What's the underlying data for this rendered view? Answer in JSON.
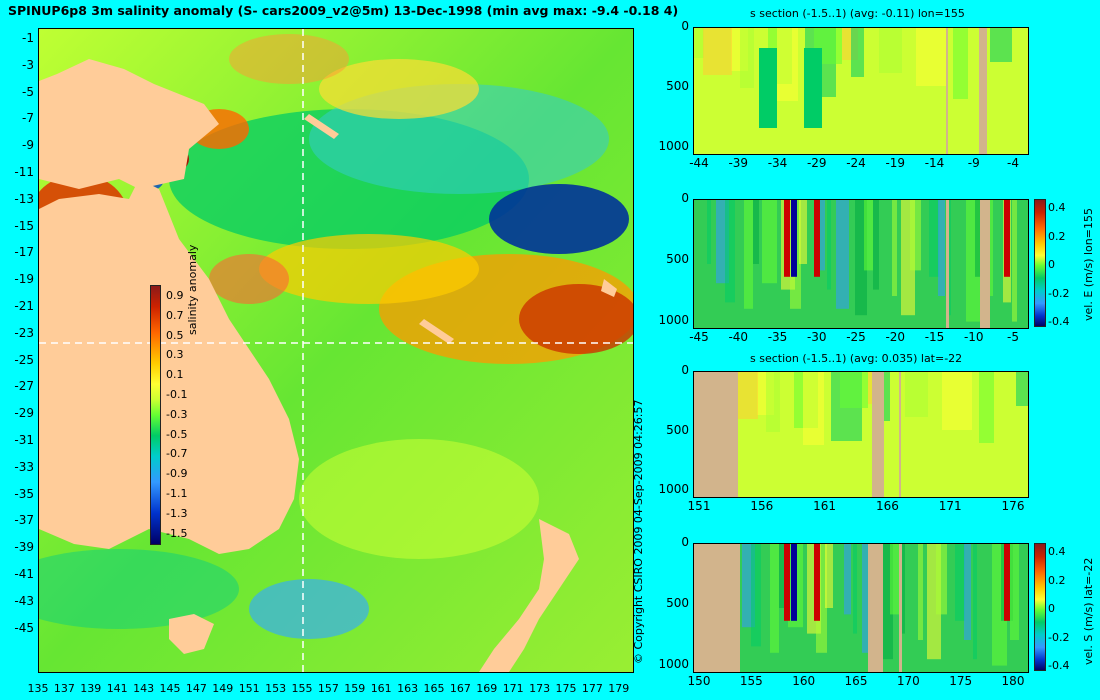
{
  "main_title": "SPINUP6p8 3m salinity anomaly (S- cars2009_v2@5m) 13-Dec-1998 (min avg max: -9.4 -0.18 4)",
  "map": {
    "y_labels": [
      "-1",
      "-3",
      "-5",
      "-7",
      "-9",
      "-11",
      "-13",
      "-15",
      "-17",
      "-19",
      "-21",
      "-23",
      "-25",
      "-27",
      "-29",
      "-31",
      "-33",
      "-35",
      "-37",
      "-39",
      "-41",
      "-43",
      "-45"
    ],
    "x_labels": [
      "135",
      "137",
      "139",
      "141",
      "143",
      "145",
      "147",
      "149",
      "151",
      "153",
      "155",
      "157",
      "159",
      "161",
      "163",
      "165",
      "167",
      "169",
      "171",
      "173",
      "175",
      "177",
      "179"
    ],
    "land_color": "#ffcc99",
    "section_line_color": "#ffffff",
    "colorbar_title": "salinity anomaly",
    "colorbar_ticks": [
      "0.9",
      "0.7",
      "0.5",
      "0.3",
      "0.1",
      "-0.1",
      "-0.3",
      "-0.5",
      "-0.7",
      "-0.9",
      "-1.1",
      "-1.3",
      "-1.5"
    ],
    "side_text": "© Copyright CSIRO 2009   04-Sep-2009 04:26:57"
  },
  "panels": [
    {
      "title": "s section (-1.5..1) (avg: -0.11) lon=155",
      "y_labels": [
        "0",
        "500",
        "1000"
      ],
      "x_labels": [
        "-44",
        "-39",
        "-34",
        "-29",
        "-24",
        "-19",
        "-14",
        "-9",
        "-4"
      ],
      "side_label": ""
    },
    {
      "title": "",
      "y_labels": [
        "0",
        "500",
        "1000"
      ],
      "x_labels": [
        "-45",
        "-40",
        "-35",
        "-30",
        "-25",
        "-20",
        "-15",
        "-10",
        "-5"
      ],
      "side_label": "vel. E (m/s) lon=155",
      "cbar_ticks": [
        "0.4",
        "0.2",
        "0",
        "-0.2",
        "-0.4"
      ]
    },
    {
      "title": "s section (-1.5..1) (avg: 0.035) lat=-22",
      "y_labels": [
        "0",
        "500",
        "1000"
      ],
      "x_labels": [
        "151",
        "156",
        "161",
        "166",
        "171",
        "176"
      ],
      "side_label": ""
    },
    {
      "title": "",
      "y_labels": [
        "0",
        "500",
        "1000"
      ],
      "x_labels": [
        "150",
        "155",
        "160",
        "165",
        "170",
        "175",
        "180"
      ],
      "side_label": "vel. S (m/s) lat=-22",
      "cbar_ticks": [
        "0.4",
        "0.2",
        "0",
        "-0.2",
        "-0.4"
      ]
    }
  ]
}
